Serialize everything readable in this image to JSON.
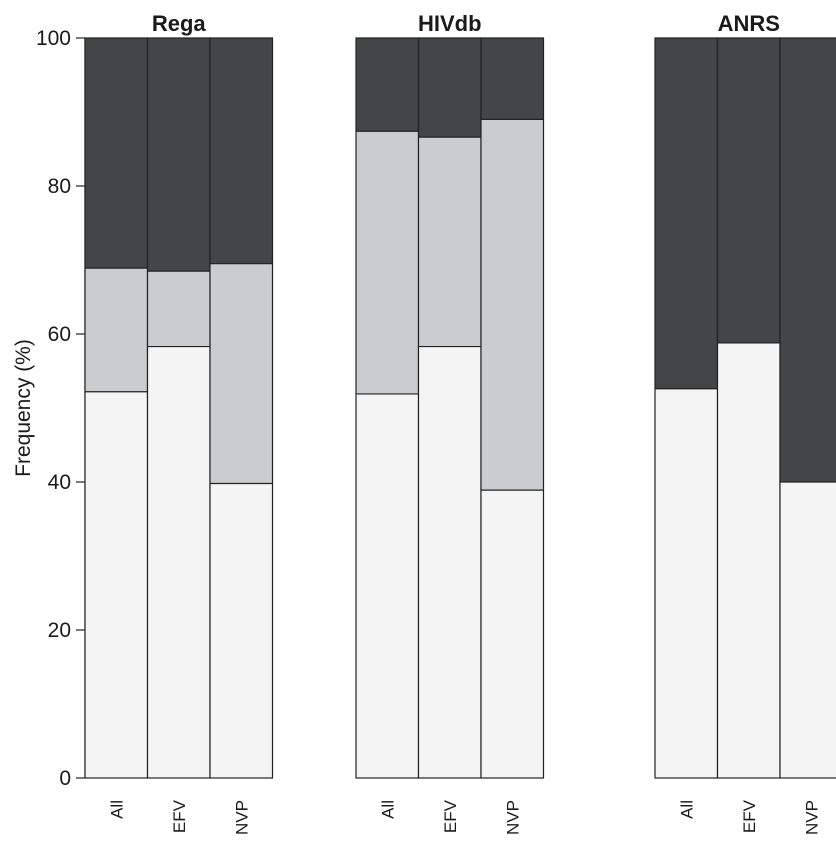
{
  "chart_data": {
    "type": "bar",
    "stacked": true,
    "ylabel": "Frequency (%)",
    "ylim": [
      0,
      100
    ],
    "yticks": [
      "0",
      "20",
      "40",
      "60",
      "80",
      "100"
    ],
    "categories": [
      "All",
      "EFV",
      "NVP"
    ],
    "colors": {
      "bottom": "#f4f4f4",
      "middle": "#cbcccd",
      "top": "#444546",
      "border": "#222222"
    },
    "panels": [
      {
        "title": "Rega",
        "bars": [
          {
            "category": "All",
            "bottom": 52.2,
            "middle": 16.7,
            "top": 31.1
          },
          {
            "category": "EFV",
            "bottom": 58.3,
            "middle": 10.2,
            "top": 31.5
          },
          {
            "category": "NVP",
            "bottom": 39.8,
            "middle": 29.7,
            "top": 30.5
          }
        ]
      },
      {
        "title": "HIVdb",
        "bars": [
          {
            "category": "All",
            "bottom": 51.9,
            "middle": 35.5,
            "top": 12.6
          },
          {
            "category": "EFV",
            "bottom": 58.3,
            "middle": 28.3,
            "top": 13.4
          },
          {
            "category": "NVP",
            "bottom": 38.9,
            "middle": 50.1,
            "top": 11.0
          }
        ]
      },
      {
        "title": "ANRS",
        "bars": [
          {
            "category": "All",
            "bottom": 52.6,
            "middle": 0,
            "top": 47.4
          },
          {
            "category": "EFV",
            "bottom": 58.8,
            "middle": 0,
            "top": 41.2
          },
          {
            "category": "NVP",
            "bottom": 40.0,
            "middle": 0,
            "top": 60.0
          }
        ]
      }
    ]
  }
}
